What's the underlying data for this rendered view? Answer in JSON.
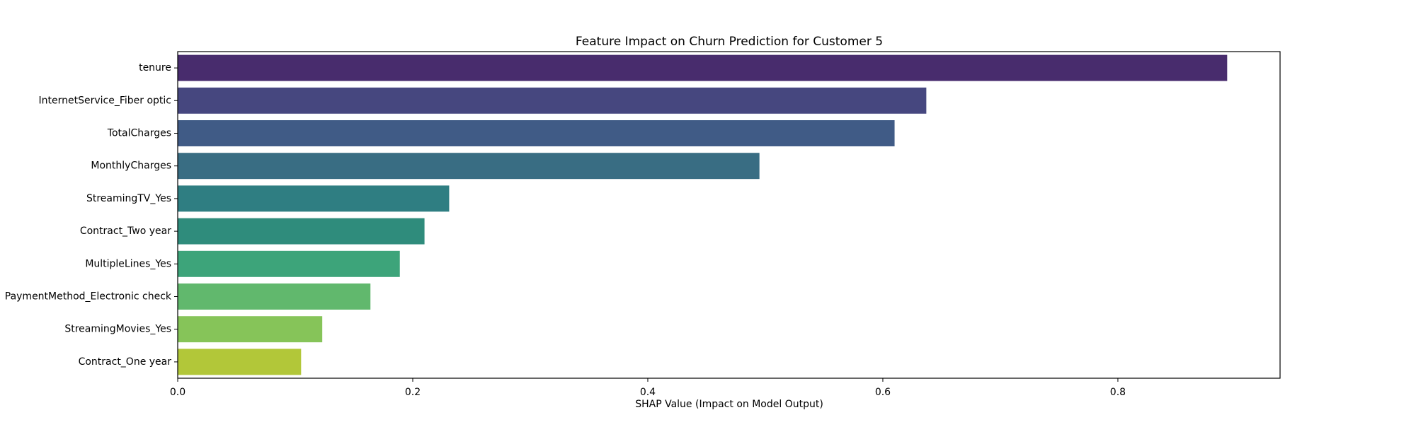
{
  "chart_data": {
    "type": "bar",
    "orientation": "horizontal",
    "title": "Feature Impact on Churn Prediction for Customer 5",
    "xlabel": "SHAP Value (Impact on Model Output)",
    "ylabel": "",
    "xlim": [
      0,
      0.938
    ],
    "xticks": [
      0.0,
      0.2,
      0.4,
      0.6,
      0.8
    ],
    "xtick_labels": [
      "0.0",
      "0.2",
      "0.4",
      "0.6",
      "0.8"
    ],
    "grid": false,
    "categories": [
      "tenure",
      "InternetService_Fiber optic",
      "TotalCharges",
      "MonthlyCharges",
      "StreamingTV_Yes",
      "Contract_Two year",
      "MultipleLines_Yes",
      "PaymentMethod_Electronic check",
      "StreamingMovies_Yes",
      "Contract_One year"
    ],
    "values": [
      0.893,
      0.637,
      0.61,
      0.495,
      0.231,
      0.21,
      0.189,
      0.164,
      0.123,
      0.105
    ],
    "colors": [
      "#482c6d",
      "#46477f",
      "#405b86",
      "#396d83",
      "#2f7e82",
      "#2f8c7c",
      "#3da47a",
      "#61b86d",
      "#86c459",
      "#b2c739"
    ]
  }
}
